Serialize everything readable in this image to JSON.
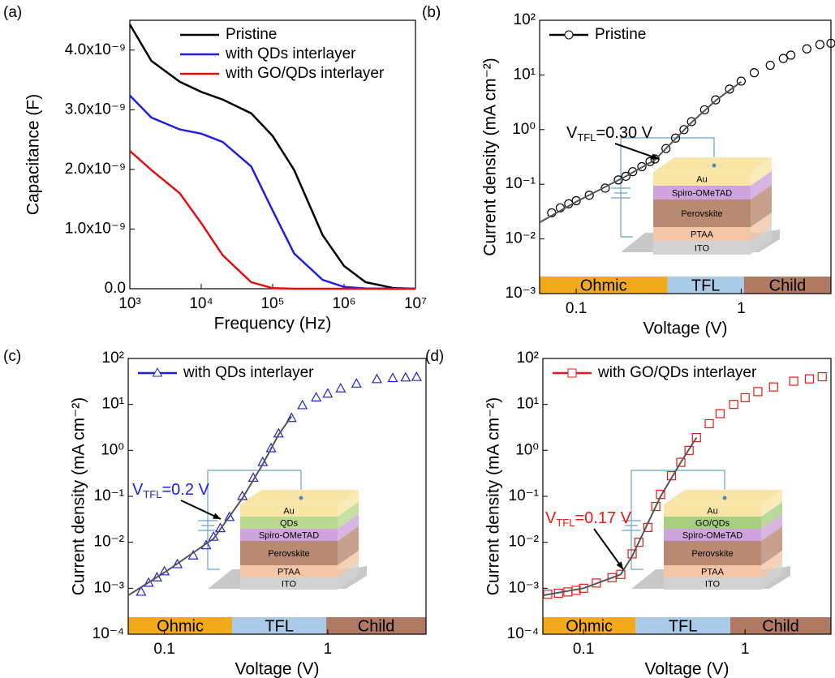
{
  "chart_data": [
    {
      "type": "line",
      "panel": "(a)",
      "x_label": "Frequency (Hz)",
      "y_label": "Capacitance (F)",
      "xscale": "log",
      "xlim": [
        1000,
        10000000
      ],
      "xticks": [
        {
          "value": 1000,
          "label": "10³"
        },
        {
          "value": 10000,
          "label": "10⁴"
        },
        {
          "value": 100000,
          "label": "10⁵"
        },
        {
          "value": 1000000,
          "label": "10⁶"
        },
        {
          "value": 10000000,
          "label": "10⁷"
        }
      ],
      "ylim": [
        0,
        4.5e-09
      ],
      "yticks": [
        {
          "value": 0,
          "label": "0.0"
        },
        {
          "value": 1e-09,
          "label": "1.0x10⁻⁹"
        },
        {
          "value": 2e-09,
          "label": "2.0x10⁻⁹"
        },
        {
          "value": 3e-09,
          "label": "3.0x10⁻⁹"
        },
        {
          "value": 4e-09,
          "label": "4.0x10⁻⁹"
        }
      ],
      "legend": "upper right",
      "x": [
        1000,
        2000,
        5000,
        10000,
        20000,
        50000,
        100000,
        200000,
        500000,
        1000000,
        2000000,
        5000000,
        10000000
      ],
      "series": [
        {
          "name": "Pristine",
          "color": "#000000",
          "values": [
            4.43e-09,
            3.82e-09,
            3.47e-09,
            3.3e-09,
            3.17e-09,
            2.94e-09,
            2.56e-09,
            1.99e-09,
            9e-10,
            3.8e-10,
            1.1e-10,
            1e-11,
            0
          ]
        },
        {
          "name": "with QDs  interlayer",
          "color": "#1f1fdc",
          "values": [
            3.24e-09,
            2.87e-09,
            2.67e-09,
            2.6e-09,
            2.46e-09,
            2.05e-09,
            1.31e-09,
            5.9e-10,
            1.5e-10,
            3e-11,
            5e-12,
            0,
            0
          ]
        },
        {
          "name": "with GO/QDs interlayer",
          "color": "#e01010",
          "values": [
            2.31e-09,
            1.99e-09,
            1.6e-09,
            1.1e-09,
            5.6e-10,
            1.1e-10,
            1e-11,
            0,
            0,
            0,
            0,
            0,
            0
          ]
        }
      ]
    },
    {
      "type": "scatter",
      "panel": "(b)",
      "x_label": "Voltage (V)",
      "y_label": "Current density (mA cm⁻²)",
      "xscale": "log",
      "yscale": "log",
      "xlim": [
        0.06,
        3.5
      ],
      "xticks": [
        0.1,
        1
      ],
      "ylim": [
        0.001,
        100
      ],
      "yticks": [
        {
          "value": 0.001,
          "label": "10⁻³"
        },
        {
          "value": 0.01,
          "label": "10⁻²"
        },
        {
          "value": 0.1,
          "label": "10⁻¹"
        },
        {
          "value": 1,
          "label": "10⁰"
        },
        {
          "value": 10,
          "label": "10¹"
        },
        {
          "value": 100,
          "label": "10²"
        }
      ],
      "legend": "upper left",
      "series": [
        {
          "name": "Pristine",
          "color": "#000000",
          "marker": "circle",
          "x": [
            0.071,
            0.08,
            0.09,
            0.1,
            0.12,
            0.15,
            0.18,
            0.2,
            0.22,
            0.25,
            0.28,
            0.3,
            0.35,
            0.4,
            0.45,
            0.5,
            0.6,
            0.7,
            0.85,
            1,
            1.2,
            1.5,
            1.8,
            2,
            2.5,
            3,
            3.5
          ],
          "values": [
            0.03,
            0.037,
            0.044,
            0.05,
            0.063,
            0.085,
            0.12,
            0.14,
            0.17,
            0.21,
            0.26,
            0.29,
            0.45,
            0.7,
            1.0,
            1.4,
            2.3,
            3.5,
            5.5,
            7.7,
            11,
            15,
            20,
            23,
            30,
            36,
            38
          ]
        },
        {
          "color": "#555555",
          "x": [
            0.06,
            0.1,
            0.2,
            0.3,
            0.4,
            0.5,
            0.7,
            1
          ],
          "values": [
            0.02,
            0.048,
            0.14,
            0.28,
            0.68,
            1.35,
            3.4,
            7.5
          ]
        }
      ],
      "annotation": {
        "color": "#000000",
        "parts": [
          "V",
          "TFL",
          "=0.30 V"
        ]
      },
      "regions": [
        {
          "label": "Ohmic",
          "from": 0.06,
          "to": 0.357,
          "color": "#f2aa1c"
        },
        {
          "label": "TFL",
          "from": 0.357,
          "to": 1.04,
          "color": "#a9cbe8"
        },
        {
          "label": "Child",
          "from": 1.04,
          "to": 3.5,
          "color": "#b07a62"
        }
      ],
      "inset": [
        {
          "label": "Au",
          "color": "#f9e6a6"
        },
        {
          "label": "Spiro-OMeTAD",
          "color": "#cfa3dc"
        },
        {
          "label": "Perovskite",
          "color": "#b98a72"
        },
        {
          "label": "PTAA",
          "color": "#f2c6a6"
        },
        {
          "label": "ITO",
          "color": "#d2d2d2"
        }
      ]
    },
    {
      "type": "scatter",
      "panel": "(c)",
      "x_label": "Voltage (V)",
      "y_label": "Current density (mA cm⁻²)",
      "xscale": "log",
      "yscale": "log",
      "xlim": [
        0.06,
        4
      ],
      "xticks": [
        0.1,
        1
      ],
      "ylim": [
        0.0001,
        100
      ],
      "yticks": [
        {
          "value": 0.0001,
          "label": "10⁻⁴"
        },
        {
          "value": 0.001,
          "label": "10⁻³"
        },
        {
          "value": 0.01,
          "label": "10⁻²"
        },
        {
          "value": 0.1,
          "label": "10⁻¹"
        },
        {
          "value": 1,
          "label": "10⁰"
        },
        {
          "value": 10,
          "label": "10¹"
        },
        {
          "value": 100,
          "label": "10²"
        }
      ],
      "legend": "upper left",
      "series": [
        {
          "name": "with QDs interlayer",
          "color": "#2020d8",
          "marker": "triangle",
          "x": [
            0.072,
            0.08,
            0.09,
            0.1,
            0.12,
            0.15,
            0.18,
            0.2,
            0.22,
            0.25,
            0.3,
            0.35,
            0.4,
            0.45,
            0.5,
            0.6,
            0.7,
            0.85,
            1,
            1.2,
            1.5,
            2,
            2.5,
            3,
            3.5
          ],
          "values": [
            0.00083,
            0.0013,
            0.0017,
            0.0023,
            0.0033,
            0.0051,
            0.0085,
            0.013,
            0.02,
            0.035,
            0.1,
            0.25,
            0.55,
            1.1,
            2.3,
            5,
            9.5,
            14,
            17,
            22,
            28,
            35,
            37,
            38,
            39
          ]
        },
        {
          "color": "#555555",
          "x": [
            0.06,
            0.1,
            0.2,
            0.3,
            0.4,
            0.5,
            0.6
          ],
          "values": [
            0.0007,
            0.0022,
            0.012,
            0.09,
            0.5,
            2.2,
            5.5
          ]
        }
      ],
      "annotation": {
        "color": "#2020d8",
        "parts": [
          "V",
          "TFL",
          "=0.2 V"
        ]
      },
      "regions": [
        {
          "label": "Ohmic",
          "from": 0.06,
          "to": 0.26,
          "color": "#f2aa1c"
        },
        {
          "label": "TFL",
          "from": 0.26,
          "to": 0.98,
          "color": "#a9cbe8"
        },
        {
          "label": "Child",
          "from": 0.98,
          "to": 4,
          "color": "#b07a62"
        }
      ],
      "inset": [
        {
          "label": "Au",
          "color": "#f9e6a6"
        },
        {
          "label": "QDs",
          "color": "#b9d98e"
        },
        {
          "label": "Spiro-OMeTAD",
          "color": "#cfa3dc"
        },
        {
          "label": "Perovskite",
          "color": "#b98a72"
        },
        {
          "label": "PTAA",
          "color": "#f2c6a6"
        },
        {
          "label": "ITO",
          "color": "#d2d2d2"
        }
      ]
    },
    {
      "type": "scatter",
      "panel": "(d)",
      "x_label": "Voltage (V)",
      "y_label": "Current density (mA cm⁻²)",
      "xscale": "log",
      "yscale": "log",
      "xlim": [
        0.056,
        3.4
      ],
      "xticks": [
        0.1,
        1
      ],
      "ylim": [
        0.0001,
        100
      ],
      "yticks": [
        {
          "value": 0.0001,
          "label": "10⁻⁴"
        },
        {
          "value": 0.001,
          "label": "10⁻³"
        },
        {
          "value": 0.01,
          "label": "10⁻²"
        },
        {
          "value": 0.1,
          "label": "10⁻¹"
        },
        {
          "value": 1,
          "label": "10⁰"
        },
        {
          "value": 10,
          "label": "10¹"
        },
        {
          "value": 100,
          "label": "10²"
        }
      ],
      "legend": "upper left",
      "series": [
        {
          "name": "with GO/QDs interlayer",
          "color": "#e81818",
          "marker": "square",
          "x": [
            0.06,
            0.07,
            0.08,
            0.09,
            0.1,
            0.12,
            0.15,
            0.17,
            0.2,
            0.22,
            0.25,
            0.28,
            0.3,
            0.35,
            0.4,
            0.45,
            0.5,
            0.6,
            0.7,
            0.85,
            1,
            1.2,
            1.5,
            2,
            2.5,
            3
          ],
          "values": [
            0.00074,
            0.00078,
            0.00083,
            0.0009,
            0.001,
            0.0013,
            0.0017,
            0.002,
            0.0056,
            0.01,
            0.021,
            0.06,
            0.11,
            0.28,
            0.55,
            1.0,
            1.9,
            3.8,
            6.3,
            10,
            14,
            19,
            24,
            32,
            36,
            40
          ]
        },
        {
          "color": "#555555",
          "x": [
            0.056,
            0.1,
            0.17,
            0.2,
            0.3,
            0.4,
            0.5
          ],
          "values": [
            0.0007,
            0.001,
            0.002,
            0.005,
            0.1,
            0.55,
            1.9
          ]
        }
      ],
      "annotation": {
        "color": "#e81818",
        "parts": [
          "V",
          "TFL",
          "=0.17 V"
        ]
      },
      "regions": [
        {
          "label": "Ohmic",
          "from": 0.056,
          "to": 0.21,
          "color": "#f2aa1c"
        },
        {
          "label": "TFL",
          "from": 0.21,
          "to": 0.81,
          "color": "#a9cbe8"
        },
        {
          "label": "Child",
          "from": 0.81,
          "to": 3.4,
          "color": "#b07a62"
        }
      ],
      "inset": [
        {
          "label": "Au",
          "color": "#f9e6a6"
        },
        {
          "label": "GO/QDs",
          "color": "#a6cf80"
        },
        {
          "label": "Spiro-OMeTAD",
          "color": "#cfa3dc"
        },
        {
          "label": "Perovskite",
          "color": "#b98a72"
        },
        {
          "label": "PTAA",
          "color": "#f2c6a6"
        },
        {
          "label": "ITO",
          "color": "#d2d2d2"
        }
      ]
    }
  ]
}
